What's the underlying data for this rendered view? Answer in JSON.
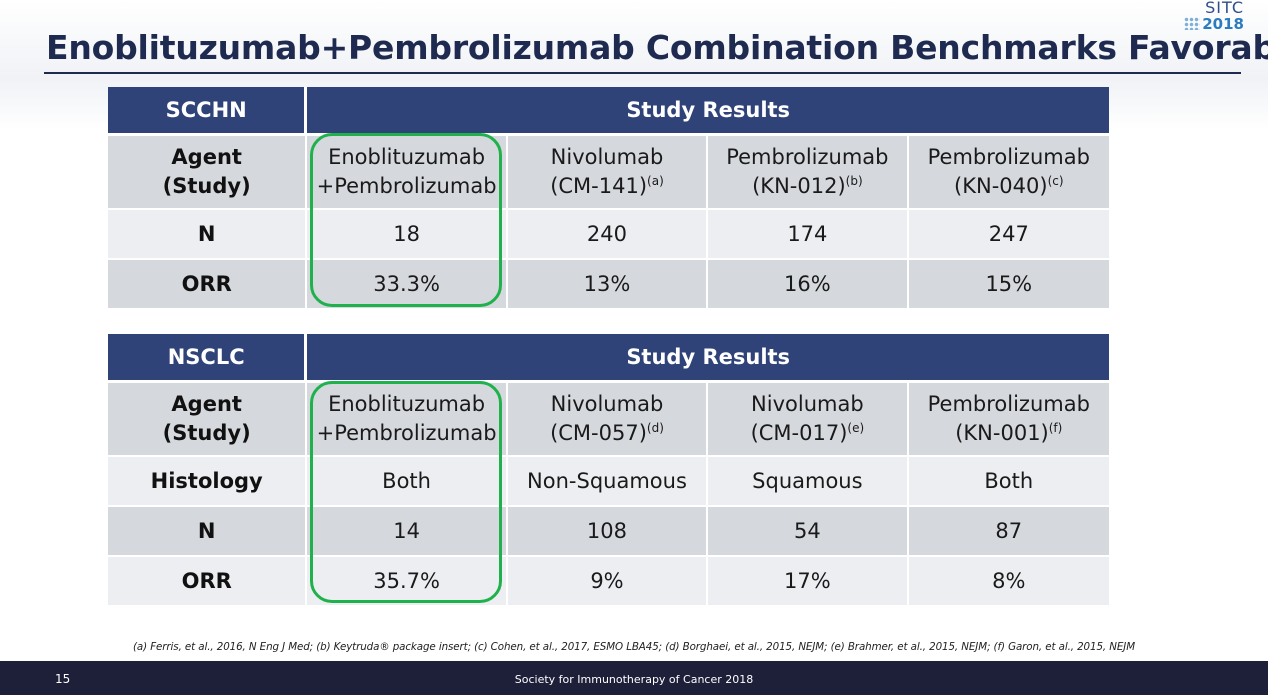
{
  "logo": {
    "line1": "SITC",
    "line2": "2018"
  },
  "title": "Enoblituzumab+Pembrolizumab Combination Benchmarks Favorably",
  "tables": {
    "scchn": {
      "section": "SCCHN",
      "results_header": "Study Results",
      "agent_label_1": "Agent",
      "agent_label_2": "(Study)",
      "agents": [
        {
          "l1": "Enoblituzumab",
          "l2": "+Pembrolizumab",
          "sup": ""
        },
        {
          "l1": "Nivolumab",
          "l2": "(CM-141)",
          "sup": "(a)"
        },
        {
          "l1": "Pembrolizumab",
          "l2": "(KN-012)",
          "sup": "(b)"
        },
        {
          "l1": "Pembrolizumab",
          "l2": "(KN-040)",
          "sup": "(c)"
        }
      ],
      "n_label": "N",
      "n": [
        "18",
        "240",
        "174",
        "247"
      ],
      "orr_label": "ORR",
      "orr": [
        "33.3%",
        "13%",
        "16%",
        "15%"
      ]
    },
    "nsclc": {
      "section": "NSCLC",
      "results_header": "Study Results",
      "agent_label_1": "Agent",
      "agent_label_2": "(Study)",
      "agents": [
        {
          "l1": "Enoblituzumab",
          "l2": "+Pembrolizumab",
          "sup": ""
        },
        {
          "l1": "Nivolumab",
          "l2": "(CM-057)",
          "sup": "(d)"
        },
        {
          "l1": "Nivolumab",
          "l2": "(CM-017)",
          "sup": "(e)"
        },
        {
          "l1": "Pembrolizumab",
          "l2": "(KN-001)",
          "sup": "(f)"
        }
      ],
      "histology_label": "Histology",
      "histology": [
        "Both",
        "Non-Squamous",
        "Squamous",
        "Both"
      ],
      "n_label": "N",
      "n": [
        "14",
        "108",
        "54",
        "87"
      ],
      "orr_label": "ORR",
      "orr": [
        "35.7%",
        "9%",
        "17%",
        "8%"
      ]
    }
  },
  "footnote": "(a) Ferris, et al., 2016, N Eng J Med; (b) Keytruda® package insert; (c) Cohen, et al., 2017, ESMO LBA45; (d) Borghaei, et al., 2015, NEJM; (e) Brahmer, et al., 2015, NEJM; (f) Garon, et al., 2015, NEJM",
  "footer": {
    "page_number": "15",
    "organization": "Society for Immunotherapy of Cancer 2018"
  },
  "colors": {
    "header_bg": "#2f4379",
    "highlight": "#1fb14b",
    "footer_bg": "#1e1f38"
  }
}
